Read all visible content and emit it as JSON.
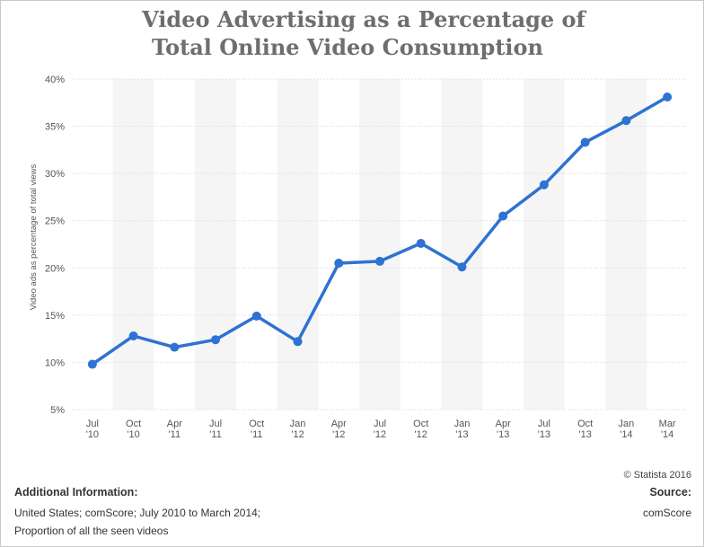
{
  "title_line1": "Video Advertising as a Percentage of",
  "title_line2": "Total Online Video Consumption",
  "copyright": "© Statista 2016",
  "additional_info": {
    "heading": "Additional Information:",
    "line1": "United States; comScore; July 2010 to March 2014;",
    "line2": "Proportion of all the seen videos"
  },
  "source": {
    "heading": "Source:",
    "value": "comScore"
  },
  "colors": {
    "line": "#2e72d2",
    "band": "#f5f5f5",
    "grid": "#dcdcdc",
    "axis_text": "#555555",
    "title": "#6e6e6e"
  },
  "chart_data": {
    "type": "line",
    "title": "Video Advertising as a Percentage of Total Online Video Consumption",
    "ylabel": "Video ads as percentage of total views",
    "xlabel": "",
    "categories": [
      [
        "Jul",
        "'10"
      ],
      [
        "Oct",
        "'10"
      ],
      [
        "Apr",
        "'11"
      ],
      [
        "Jul",
        "'11"
      ],
      [
        "Oct",
        "'11"
      ],
      [
        "Jan",
        "'12"
      ],
      [
        "Apr",
        "'12"
      ],
      [
        "Jul",
        "'12"
      ],
      [
        "Oct",
        "'12"
      ],
      [
        "Jan",
        "'13"
      ],
      [
        "Apr",
        "'13"
      ],
      [
        "Jul",
        "'13"
      ],
      [
        "Oct",
        "'13"
      ],
      [
        "Jan",
        "'14"
      ],
      [
        "Mar",
        "'14"
      ]
    ],
    "values": [
      9.8,
      12.8,
      11.6,
      12.4,
      14.9,
      12.2,
      20.5,
      20.7,
      22.6,
      20.1,
      25.5,
      28.8,
      33.3,
      35.6,
      38.1
    ],
    "y_ticks": [
      5,
      10,
      15,
      20,
      25,
      30,
      35,
      40
    ],
    "y_tick_suffix": "%",
    "ylim": [
      5,
      40
    ],
    "grid": true,
    "legend": "none"
  }
}
